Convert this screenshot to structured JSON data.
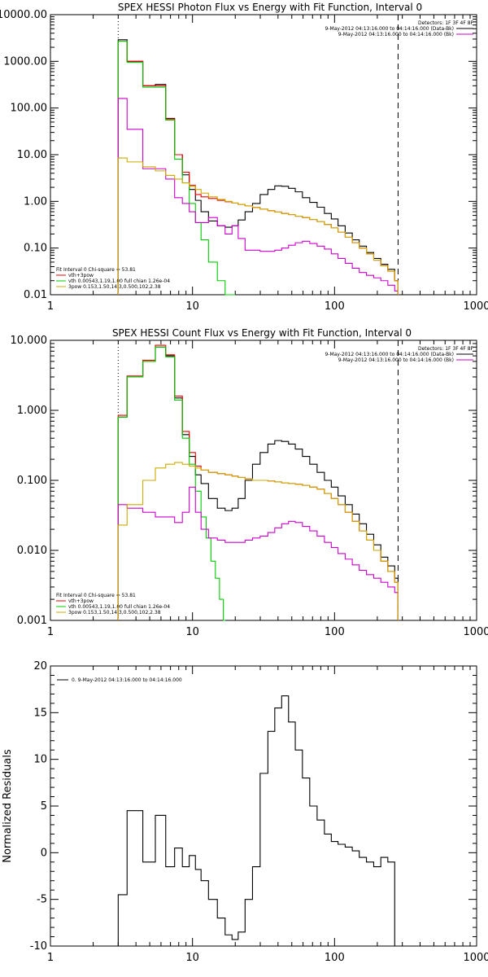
{
  "chart_data": [
    {
      "type": "line",
      "title": "SPEX HESSI Photon Flux vs Energy with Fit Function, Interval 0",
      "xscale": "log",
      "yscale": "log",
      "xlim": [
        1,
        1000
      ],
      "ylim": [
        0.01,
        10000
      ],
      "x_ticks": [
        1,
        10,
        100,
        1000
      ],
      "x_tick_labels": [
        "1",
        "10",
        "100",
        "1000"
      ],
      "y_ticks": [
        0.01,
        0.1,
        1,
        10,
        100,
        1000,
        10000
      ],
      "y_tick_labels": [
        "0.01",
        "0.10",
        "1.00",
        "10.00",
        "100.00",
        "1000.00",
        "10000.00"
      ],
      "vlines": [
        {
          "x": 3,
          "style": "dotted"
        },
        {
          "x": 280,
          "style": "dashed"
        }
      ],
      "legend_top": {
        "position": "top-right",
        "detectors": "Detectors: 1F 3F 4F 8F",
        "entries": [
          {
            "text": "9-May-2012 04:13:16.000 to 04:14:16.000 (Data-Bk)",
            "color": "#000000"
          },
          {
            "text": "9-May-2012 04:13:16.000 to 04:14:16.000 (Bk)",
            "color": "#cc00cc"
          }
        ]
      },
      "legend_bottom": {
        "position": "bottom-left",
        "header": "Fit Interval 0   Chi-square = 53.81",
        "entries": [
          {
            "text": "vth+3pow",
            "color": "#ee0000"
          },
          {
            "text": "vth 0.00543,1.19,1.00  full chian 1.26e-04",
            "color": "#00cc00"
          },
          {
            "text": "3pow 0.153,1.50,14.3,0.500,102,2.38",
            "color": "#ccaa00"
          }
        ]
      },
      "series": [
        {
          "color": "#000000",
          "x": [
            3,
            4,
            5,
            6,
            7,
            8,
            9,
            10,
            11,
            12,
            14,
            16,
            18,
            20,
            22,
            25,
            28,
            32,
            36,
            40,
            45,
            50,
            56,
            63,
            71,
            80,
            90,
            100,
            112,
            126,
            141,
            158,
            178,
            200,
            224,
            251,
            280
          ],
          "y": [
            2900,
            1000,
            300,
            320,
            60,
            10,
            3.7,
            1.8,
            1.05,
            0.6,
            0.38,
            0.3,
            0.28,
            0.3,
            0.4,
            0.6,
            0.9,
            1.4,
            1.8,
            2.15,
            2.1,
            1.9,
            1.6,
            1.2,
            0.95,
            0.75,
            0.55,
            0.42,
            0.3,
            0.21,
            0.15,
            0.11,
            0.08,
            0.06,
            0.045,
            0.035,
            0.02
          ]
        },
        {
          "color": "#ee0000",
          "x": [
            3,
            4,
            5,
            6,
            7,
            8,
            9,
            10,
            11,
            12,
            14,
            16,
            18,
            20,
            22,
            25,
            28,
            32,
            36,
            40,
            45,
            50,
            56,
            63,
            71,
            80,
            90,
            100,
            112,
            126,
            141,
            158,
            178,
            200,
            224,
            251,
            280
          ],
          "y": [
            2700,
            1000,
            300,
            300,
            58,
            10,
            4.2,
            2.2,
            1.4,
            1.25,
            1.15,
            1.05,
            0.98,
            0.92,
            0.86,
            0.8,
            0.74,
            0.68,
            0.63,
            0.59,
            0.55,
            0.52,
            0.48,
            0.45,
            0.41,
            0.37,
            0.32,
            0.27,
            0.22,
            0.17,
            0.13,
            0.1,
            0.075,
            0.055,
            0.042,
            0.032,
            0.02
          ]
        },
        {
          "color": "#00cc00",
          "x": [
            3,
            4,
            5,
            6,
            7,
            8,
            9,
            10,
            11,
            12,
            14,
            16,
            18,
            20
          ],
          "y": [
            2700,
            950,
            280,
            280,
            55,
            8,
            2.5,
            0.9,
            0.35,
            0.15,
            0.05,
            0.02,
            0.01,
            0.01
          ]
        },
        {
          "color": "#cc00cc",
          "x": [
            3,
            4,
            5,
            6,
            7,
            8,
            9,
            10,
            11,
            12,
            14,
            16,
            18,
            20,
            22,
            25,
            28,
            32,
            36,
            40,
            45,
            50,
            56,
            63,
            71,
            80,
            90,
            100,
            112,
            126,
            141,
            158,
            178,
            200,
            224,
            251,
            280
          ],
          "y": [
            160,
            35,
            5,
            5,
            3,
            1.2,
            0.9,
            0.6,
            0.35,
            0.35,
            0.45,
            0.3,
            0.2,
            0.3,
            0.16,
            0.09,
            0.09,
            0.085,
            0.085,
            0.09,
            0.1,
            0.115,
            0.13,
            0.14,
            0.125,
            0.11,
            0.095,
            0.075,
            0.06,
            0.047,
            0.037,
            0.03,
            0.026,
            0.023,
            0.02,
            0.016,
            0.012
          ]
        },
        {
          "color": "#ccaa00",
          "x": [
            3,
            4,
            5,
            6,
            7,
            8,
            9,
            10,
            11,
            12,
            14,
            16,
            18,
            20,
            22,
            25,
            28,
            32,
            36,
            40,
            45,
            50,
            56,
            63,
            71,
            80,
            90,
            100,
            112,
            126,
            141,
            158,
            178,
            200,
            224,
            251,
            280
          ],
          "y": [
            8.5,
            7,
            5.5,
            4.5,
            3.6,
            3,
            2.5,
            2.1,
            1.8,
            1.5,
            1.25,
            1.1,
            1,
            0.92,
            0.86,
            0.8,
            0.74,
            0.68,
            0.63,
            0.59,
            0.55,
            0.52,
            0.48,
            0.45,
            0.41,
            0.37,
            0.32,
            0.27,
            0.22,
            0.17,
            0.13,
            0.1,
            0.075,
            0.055,
            0.042,
            0.032,
            0.02
          ]
        }
      ]
    },
    {
      "type": "line",
      "title": "SPEX HESSI Count Flux vs Energy with Fit Function, Interval 0",
      "xscale": "log",
      "yscale": "log",
      "xlim": [
        1,
        1000
      ],
      "ylim": [
        0.001,
        10
      ],
      "x_ticks": [
        1,
        10,
        100,
        1000
      ],
      "x_tick_labels": [
        "1",
        "10",
        "100",
        "1000"
      ],
      "y_ticks": [
        0.001,
        0.01,
        0.1,
        1,
        10
      ],
      "y_tick_labels": [
        "0.001",
        "0.010",
        "0.100",
        "1.000",
        "10.000"
      ],
      "vlines": [
        {
          "x": 3,
          "style": "dotted"
        },
        {
          "x": 280,
          "style": "dashed"
        }
      ],
      "legend_top": {
        "position": "top-right",
        "detectors": "Detectors: 1F 3F 4F 8F",
        "entries": [
          {
            "text": "9-May-2012 04:13:16.000 to 04:14:16.000 (Data-Bk)",
            "color": "#000000"
          },
          {
            "text": "9-May-2012 04:13:16.000 to 04:14:16.000 (Bk)",
            "color": "#cc00cc"
          }
        ]
      },
      "legend_bottom": {
        "position": "bottom-left",
        "header": "Fit Interval 0   Chi-square = 53.81",
        "entries": [
          {
            "text": "vth+3pow",
            "color": "#ee0000"
          },
          {
            "text": "vth 0.00543,1.19,1.00  full chian 1.26e-04",
            "color": "#00cc00"
          },
          {
            "text": "3pow 0.153,1.50,14.3,0.500,102,2.38",
            "color": "#ccaa00"
          }
        ]
      },
      "series": [
        {
          "color": "#000000",
          "x": [
            3,
            4,
            5,
            6,
            7,
            8,
            9,
            10,
            11,
            12,
            14,
            16,
            18,
            20,
            22,
            25,
            28,
            32,
            36,
            40,
            45,
            50,
            56,
            63,
            71,
            80,
            90,
            100,
            112,
            126,
            141,
            158,
            178,
            200,
            224,
            251,
            280
          ],
          "y": [
            0.8,
            3,
            5,
            8,
            6,
            1.5,
            0.45,
            0.22,
            0.12,
            0.09,
            0.055,
            0.04,
            0.037,
            0.04,
            0.055,
            0.1,
            0.17,
            0.25,
            0.33,
            0.37,
            0.36,
            0.33,
            0.28,
            0.22,
            0.17,
            0.13,
            0.1,
            0.08,
            0.06,
            0.045,
            0.033,
            0.024,
            0.017,
            0.012,
            0.008,
            0.006,
            0.004
          ]
        },
        {
          "color": "#ee0000",
          "x": [
            3,
            4,
            5,
            6,
            7,
            8,
            9,
            10,
            11,
            12,
            14,
            16,
            18,
            20,
            22,
            25,
            28,
            32,
            36,
            40,
            45,
            50,
            56,
            63,
            71,
            80,
            90,
            100,
            112,
            126,
            141,
            158,
            178,
            200,
            224,
            251,
            280
          ],
          "y": [
            0.85,
            3.1,
            5.2,
            8.5,
            6.2,
            1.6,
            0.5,
            0.25,
            0.16,
            0.14,
            0.13,
            0.125,
            0.12,
            0.115,
            0.11,
            0.105,
            0.1,
            0.1,
            0.098,
            0.095,
            0.092,
            0.09,
            0.088,
            0.085,
            0.08,
            0.075,
            0.065,
            0.055,
            0.045,
            0.035,
            0.026,
            0.019,
            0.014,
            0.01,
            0.007,
            0.005,
            0.0035
          ]
        },
        {
          "color": "#00cc00",
          "x": [
            3,
            4,
            5,
            6,
            7,
            8,
            9,
            10,
            11,
            12,
            13,
            14,
            15,
            16,
            17
          ],
          "y": [
            0.8,
            3,
            5,
            8,
            5.8,
            1.4,
            0.4,
            0.17,
            0.07,
            0.03,
            0.015,
            0.007,
            0.004,
            0.002,
            0.001
          ]
        },
        {
          "color": "#cc00cc",
          "x": [
            3,
            4,
            5,
            6,
            7,
            8,
            9,
            10,
            11,
            12,
            14,
            16,
            18,
            20,
            22,
            25,
            28,
            32,
            36,
            40,
            45,
            50,
            56,
            63,
            71,
            80,
            90,
            100,
            112,
            126,
            141,
            158,
            178,
            200,
            224,
            251,
            280
          ],
          "y": [
            0.045,
            0.04,
            0.035,
            0.03,
            0.03,
            0.025,
            0.035,
            0.08,
            0.035,
            0.02,
            0.015,
            0.014,
            0.013,
            0.013,
            0.013,
            0.014,
            0.015,
            0.016,
            0.018,
            0.021,
            0.024,
            0.026,
            0.025,
            0.022,
            0.019,
            0.016,
            0.013,
            0.011,
            0.009,
            0.0075,
            0.0062,
            0.0052,
            0.0045,
            0.004,
            0.0035,
            0.003,
            0.0025
          ]
        },
        {
          "color": "#ccaa00",
          "x": [
            3,
            4,
            5,
            6,
            7,
            8,
            9,
            10,
            11,
            12,
            14,
            16,
            18,
            20,
            22,
            25,
            28,
            32,
            36,
            40,
            45,
            50,
            56,
            63,
            71,
            80,
            90,
            100,
            112,
            126,
            141,
            158,
            178,
            200,
            224,
            251,
            280
          ],
          "y": [
            0.023,
            0.045,
            0.1,
            0.15,
            0.17,
            0.18,
            0.17,
            0.16,
            0.15,
            0.14,
            0.13,
            0.125,
            0.12,
            0.115,
            0.11,
            0.105,
            0.1,
            0.1,
            0.098,
            0.095,
            0.092,
            0.09,
            0.088,
            0.085,
            0.08,
            0.075,
            0.065,
            0.055,
            0.045,
            0.035,
            0.026,
            0.019,
            0.014,
            0.01,
            0.007,
            0.005,
            0.0035
          ]
        }
      ]
    },
    {
      "type": "line",
      "title": "",
      "xscale": "log",
      "yscale": "linear",
      "xlim": [
        1,
        1000
      ],
      "ylim": [
        -10,
        20
      ],
      "ylabel": "Normalized Residuals",
      "x_ticks": [
        1,
        10,
        100,
        1000
      ],
      "x_tick_labels": [
        "1",
        "10",
        "100",
        "1000"
      ],
      "y_ticks": [
        -10,
        -5,
        0,
        5,
        10,
        15,
        20
      ],
      "y_tick_labels": [
        "-10",
        "-5",
        "0",
        "5",
        "10",
        "15",
        "20"
      ],
      "legend_top": {
        "position": "top-left",
        "entries": [
          {
            "text": "0. 9-May-2012 04:13:16.000 to 04:14:16.000",
            "color": "#000000"
          }
        ]
      },
      "series": [
        {
          "color": "#000000",
          "x": [
            3,
            4,
            5,
            6,
            7,
            8,
            9,
            10,
            11,
            12,
            14,
            16,
            18,
            20,
            22,
            25,
            28,
            32,
            36,
            40,
            45,
            50,
            56,
            63,
            71,
            80,
            90,
            100,
            112,
            126,
            141,
            158,
            178,
            200,
            224,
            251,
            280
          ],
          "y": [
            -4.5,
            4.5,
            -1,
            4,
            -1.5,
            0.5,
            -1.5,
            -0.3,
            -1.8,
            -3,
            -5,
            -7,
            -8.8,
            -9.3,
            -8.5,
            -5,
            -1.5,
            8.5,
            13,
            15.5,
            16.8,
            14,
            11,
            8,
            5,
            3.5,
            2,
            1.2,
            0.9,
            0.6,
            0.2,
            -0.5,
            -1,
            -1.5,
            -0.5,
            -1,
            -10
          ]
        }
      ]
    }
  ]
}
